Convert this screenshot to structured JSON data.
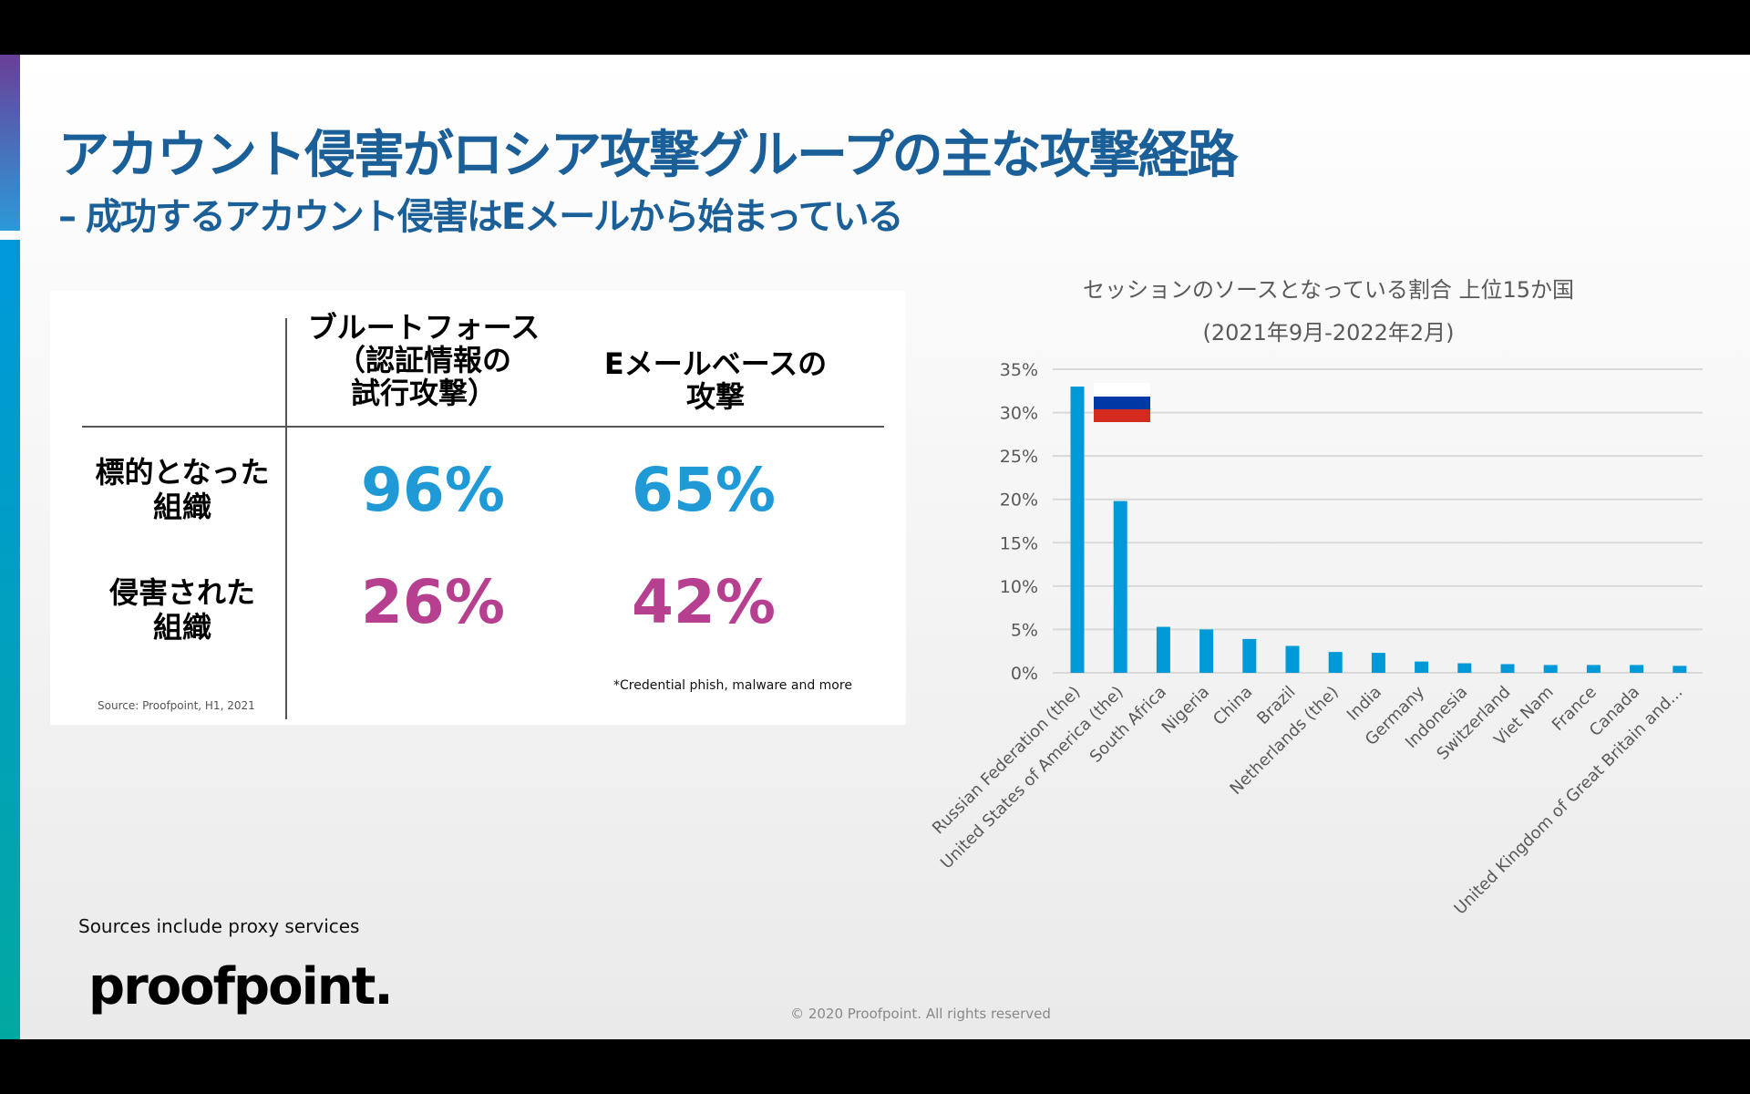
{
  "title": "アカウント侵害がロシア攻撃グループの主な攻撃経路",
  "subtitle": "– 成功するアカウント侵害はEメールから始まっている",
  "table": {
    "col1": [
      "ブルートフォース",
      "（認証情報の",
      "試行攻撃）"
    ],
    "col2": [
      "Eメールベースの",
      "攻撃"
    ],
    "row1": [
      "標的となった",
      "組織"
    ],
    "row2": [
      "侵害された",
      "組織"
    ],
    "v11": "96%",
    "v12": "65%",
    "v21": "26%",
    "v22": "42%",
    "note": "*Credential phish, malware and more",
    "source": "Source: Proofpoint, H1, 2021",
    "colors": {
      "targeted": "#1f9ad6",
      "compromised": "#b6408f"
    }
  },
  "chart_data": {
    "type": "bar",
    "title": "セッションのソースとなっている割合 上位15か国",
    "subtitle": "(2021年9月-2022年2月)",
    "categories": [
      "Russian Federation (the)",
      "United States of America (the)",
      "South Africa",
      "Nigeria",
      "China",
      "Brazil",
      "Netherlands (the)",
      "India",
      "Germany",
      "Indonesia",
      "Switzerland",
      "Viet Nam",
      "France",
      "Canada",
      "United Kingdom of Great Britain and..."
    ],
    "values": [
      33.0,
      19.8,
      5.3,
      5.0,
      3.9,
      3.1,
      2.4,
      2.3,
      1.3,
      1.1,
      1.0,
      0.9,
      0.9,
      0.9,
      0.8
    ],
    "yticks": [
      "0%",
      "5%",
      "10%",
      "15%",
      "20%",
      "25%",
      "30%",
      "35%"
    ],
    "ylim": [
      0,
      35
    ],
    "grid": true,
    "bar_color": "#0099d8",
    "annotation": "russian-flag-icon"
  },
  "footer": {
    "sources": "Sources include proxy services",
    "logo": "proofpoint.",
    "copyright": "© 2020 Proofpoint. All rights reserved"
  }
}
